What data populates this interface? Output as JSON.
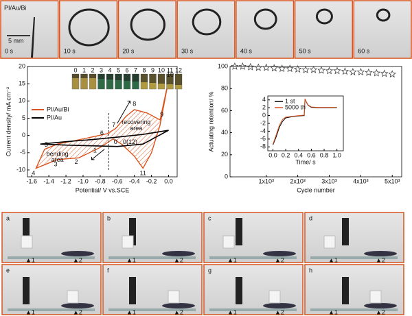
{
  "top_strip": {
    "label": "PI/Au/Bi",
    "scale": "5 mm",
    "times": [
      "0 s",
      "10 s",
      "20 s",
      "30 s",
      "40 s",
      "50 s",
      "60 s"
    ]
  },
  "chart_data": [
    {
      "type": "line",
      "xlabel": "Potential/ V vs.SCE",
      "ylabel": "Current density/ mA cm⁻²",
      "xlim": [
        -1.65,
        0.1
      ],
      "xticks": [
        -1.6,
        -1.4,
        -1.2,
        {
          "value": -1,
          "label": "-1.0"
        },
        -0.8,
        -0.6,
        -0.4,
        -0.2,
        {
          "value": 0,
          "label": "0.0"
        }
      ],
      "ylim": [
        -12,
        20
      ],
      "yticks": [
        -10,
        -5,
        0,
        5,
        10,
        15,
        20
      ],
      "inset_labels": [
        "0",
        "1",
        "2",
        "3",
        "4",
        "5",
        "6",
        "7",
        "8",
        "9",
        "10",
        "11",
        "12"
      ],
      "series": [
        {
          "name": "PI/Au/Bi",
          "color": "#d9541e",
          "x": [
            -0.65,
            -0.8,
            -1.05,
            -1.3,
            -1.55,
            -1.45,
            -1.3,
            -1.0,
            -0.72,
            -0.62,
            -0.5,
            -0.4,
            -0.25,
            -0.1,
            0.0,
            -0.1,
            -0.2,
            -0.3,
            -0.4,
            -0.55,
            -0.65
          ],
          "values": [
            -1,
            -3.5,
            -6.5,
            -7,
            -9.5,
            -4,
            -2.5,
            -1,
            0.5,
            2,
            5.5,
            7.5,
            6.5,
            4.5,
            16,
            3,
            -5,
            -9.5,
            -6,
            -2.5,
            -1
          ]
        },
        {
          "name": "PI/Au",
          "color": "#000000",
          "x": [
            -1.5,
            -1.2,
            -0.9,
            -0.6,
            -0.3,
            0.0,
            -0.3,
            -0.6,
            -0.9,
            -1.2,
            -1.5
          ],
          "values": [
            -2.5,
            -1.8,
            -1.2,
            -0.5,
            0.3,
            1.5,
            -2.5,
            -3.2,
            -3.0,
            -2.8,
            -2.5
          ]
        }
      ],
      "annotations": [
        "0",
        "1",
        "2",
        "3",
        "4",
        "5",
        "6",
        "7",
        "8",
        "9",
        "10",
        "11",
        "0(12)",
        "bending",
        "area",
        "recovering",
        "area"
      ]
    },
    {
      "type": "scatter",
      "xlabel": "Cycle number",
      "ylabel": "Actuating retention/ %",
      "xlim": [
        -150,
        5300
      ],
      "xticks": [
        {
          "value": 1000,
          "label": "1x10³"
        },
        {
          "value": 2000,
          "label": "2x10³"
        },
        {
          "value": 3000,
          "label": "3x10³"
        },
        {
          "value": 4000,
          "label": "4x10³"
        },
        {
          "value": 5000,
          "label": "5x10³"
        }
      ],
      "ylim": [
        0,
        100
      ],
      "yticks": [
        0,
        20,
        40,
        60,
        80,
        100
      ],
      "color": "#444444",
      "x": [
        0,
        250,
        500,
        750,
        1000,
        1250,
        1500,
        1750,
        2000,
        2250,
        2500,
        2750,
        3000,
        3250,
        3500,
        3750,
        4000,
        4250,
        4500,
        4750,
        5000
      ],
      "values": [
        100,
        100,
        99.5,
        99,
        99,
        98.5,
        98,
        98,
        97.5,
        97,
        97,
        96.5,
        96,
        96,
        95.5,
        95,
        95,
        94.5,
        94,
        93.5,
        93
      ]
    },
    {
      "type": "line",
      "xlabel": "Time/ s",
      "xlim": [
        -0.08,
        1.1
      ],
      "xticks": [
        {
          "value": 0,
          "label": "0.0"
        },
        0.2,
        0.4,
        0.6,
        0.8,
        {
          "value": 1,
          "label": "1.0"
        }
      ],
      "ylim": [
        -9,
        5
      ],
      "yticks": [
        -8,
        -6,
        -4,
        -2,
        0,
        2,
        4
      ],
      "series": [
        {
          "name": "1 st",
          "color": "#000000",
          "x": [
            0,
            0.05,
            0.1,
            0.15,
            0.2,
            0.3,
            0.4,
            0.49,
            0.5,
            0.52,
            0.55,
            0.6,
            0.7,
            0.8,
            0.9,
            1.0
          ],
          "values": [
            -7.5,
            -5.5,
            -3,
            -1.5,
            -0.6,
            -0.3,
            -0.1,
            0,
            4.2,
            3.5,
            2.6,
            2.1,
            2,
            2,
            2,
            2
          ]
        },
        {
          "name": "5000 th",
          "color": "#d9541e",
          "x": [
            0,
            0.05,
            0.1,
            0.15,
            0.2,
            0.3,
            0.4,
            0.49,
            0.5,
            0.52,
            0.55,
            0.6,
            0.7,
            0.8,
            0.9,
            1.0
          ],
          "values": [
            -7.3,
            -5,
            -2.5,
            -1,
            -0.4,
            -0.2,
            0,
            0.1,
            4.3,
            3.6,
            2.7,
            2.2,
            2.1,
            2.1,
            2.1,
            2.1
          ]
        }
      ]
    }
  ],
  "bottom_panels": {
    "letters": [
      "a",
      "b",
      "c",
      "d",
      "e",
      "f",
      "g",
      "h"
    ],
    "marker1": "▲1",
    "marker2": "▲2"
  }
}
